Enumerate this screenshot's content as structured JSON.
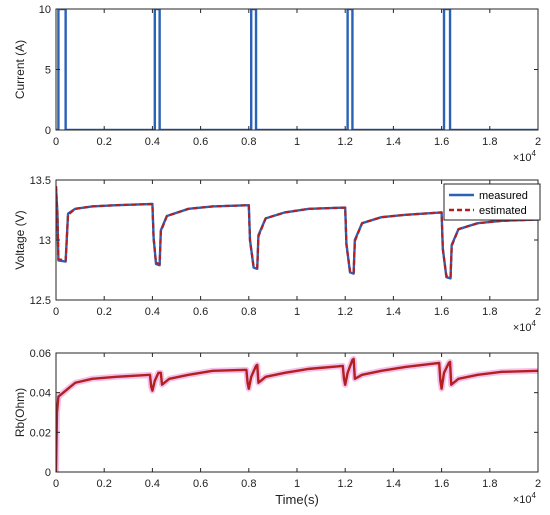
{
  "chart_data": [
    {
      "type": "line",
      "ylabel": "Current (A)",
      "xlabel": "",
      "x_exponent_label": "×10",
      "x_exponent_power": "4",
      "xlim": [
        0,
        2.0
      ],
      "ylim": [
        0,
        10
      ],
      "xticks": [
        "0",
        "0.2",
        "0.4",
        "0.6",
        "0.8",
        "1",
        "1.2",
        "1.4",
        "1.6",
        "1.8",
        "2"
      ],
      "yticks": [
        "0",
        "5",
        "10"
      ],
      "series": [
        {
          "color": "#2a62b8",
          "points": [
            [
              0,
              0
            ],
            [
              0.01,
              0
            ],
            [
              0.01,
              10
            ],
            [
              0.04,
              10
            ],
            [
              0.04,
              0
            ],
            [
              0.41,
              0
            ],
            [
              0.41,
              10
            ],
            [
              0.43,
              10
            ],
            [
              0.43,
              0
            ],
            [
              0.81,
              0
            ],
            [
              0.81,
              10
            ],
            [
              0.83,
              10
            ],
            [
              0.83,
              0
            ],
            [
              1.21,
              0
            ],
            [
              1.21,
              10
            ],
            [
              1.23,
              10
            ],
            [
              1.23,
              0
            ],
            [
              1.61,
              0
            ],
            [
              1.61,
              10
            ],
            [
              1.635,
              10
            ],
            [
              1.635,
              0
            ],
            [
              2.0,
              0
            ]
          ]
        }
      ]
    },
    {
      "type": "line",
      "ylabel": "Voltage (V)",
      "xlabel": "",
      "x_exponent_label": "×10",
      "x_exponent_power": "4",
      "xlim": [
        0,
        2.0
      ],
      "ylim": [
        12.5,
        13.5
      ],
      "xticks": [
        "0",
        "0.2",
        "0.4",
        "0.6",
        "0.8",
        "1",
        "1.2",
        "1.4",
        "1.6",
        "1.8",
        "2"
      ],
      "yticks": [
        "12.5",
        "13",
        "13.5"
      ],
      "legend": [
        "measured",
        "estimated"
      ],
      "legend_position": "top-right",
      "series": [
        {
          "name": "measured",
          "color": "#2a62b8",
          "dash": false,
          "points": [
            [
              0,
              13.44
            ],
            [
              0.006,
              13.22
            ],
            [
              0.01,
              12.83
            ],
            [
              0.04,
              12.82
            ],
            [
              0.05,
              13.22
            ],
            [
              0.08,
              13.26
            ],
            [
              0.15,
              13.28
            ],
            [
              0.25,
              13.29
            ],
            [
              0.4,
              13.3
            ],
            [
              0.405,
              13.02
            ],
            [
              0.415,
              12.8
            ],
            [
              0.43,
              12.79
            ],
            [
              0.435,
              13.08
            ],
            [
              0.46,
              13.2
            ],
            [
              0.55,
              13.26
            ],
            [
              0.65,
              13.28
            ],
            [
              0.8,
              13.29
            ],
            [
              0.805,
              13.0
            ],
            [
              0.82,
              12.77
            ],
            [
              0.835,
              12.76
            ],
            [
              0.84,
              13.04
            ],
            [
              0.87,
              13.18
            ],
            [
              0.95,
              13.23
            ],
            [
              1.05,
              13.26
            ],
            [
              1.2,
              13.27
            ],
            [
              1.205,
              12.97
            ],
            [
              1.22,
              12.73
            ],
            [
              1.235,
              12.72
            ],
            [
              1.24,
              13.0
            ],
            [
              1.27,
              13.14
            ],
            [
              1.35,
              13.19
            ],
            [
              1.45,
              13.21
            ],
            [
              1.6,
              13.23
            ],
            [
              1.605,
              12.93
            ],
            [
              1.62,
              12.69
            ],
            [
              1.637,
              12.68
            ],
            [
              1.642,
              12.96
            ],
            [
              1.67,
              13.09
            ],
            [
              1.75,
              13.14
            ],
            [
              1.85,
              13.16
            ],
            [
              2.0,
              13.17
            ]
          ]
        },
        {
          "name": "estimated",
          "color": "#b32020",
          "dash": true,
          "points": [
            [
              0,
              13.45
            ],
            [
              0.006,
              13.2
            ],
            [
              0.01,
              12.84
            ],
            [
              0.04,
              12.83
            ],
            [
              0.05,
              13.21
            ],
            [
              0.08,
              13.26
            ],
            [
              0.15,
              13.28
            ],
            [
              0.25,
              13.29
            ],
            [
              0.4,
              13.3
            ],
            [
              0.405,
              13.01
            ],
            [
              0.415,
              12.81
            ],
            [
              0.43,
              12.8
            ],
            [
              0.435,
              13.07
            ],
            [
              0.46,
              13.2
            ],
            [
              0.55,
              13.26
            ],
            [
              0.65,
              13.28
            ],
            [
              0.8,
              13.29
            ],
            [
              0.805,
              12.99
            ],
            [
              0.82,
              12.78
            ],
            [
              0.835,
              12.77
            ],
            [
              0.84,
              13.03
            ],
            [
              0.87,
              13.18
            ],
            [
              0.95,
              13.23
            ],
            [
              1.05,
              13.26
            ],
            [
              1.2,
              13.27
            ],
            [
              1.205,
              12.96
            ],
            [
              1.22,
              12.74
            ],
            [
              1.235,
              12.73
            ],
            [
              1.24,
              12.99
            ],
            [
              1.27,
              13.14
            ],
            [
              1.35,
              13.19
            ],
            [
              1.45,
              13.21
            ],
            [
              1.6,
              13.23
            ],
            [
              1.605,
              12.92
            ],
            [
              1.62,
              12.7
            ],
            [
              1.637,
              12.69
            ],
            [
              1.642,
              12.95
            ],
            [
              1.67,
              13.09
            ],
            [
              1.75,
              13.14
            ],
            [
              1.85,
              13.16
            ],
            [
              2.0,
              13.17
            ]
          ]
        }
      ]
    },
    {
      "type": "line",
      "ylabel": "Rb(Ohm)",
      "xlabel": "Time(s)",
      "x_exponent_label": "×10",
      "x_exponent_power": "4",
      "xlim": [
        0,
        2.0
      ],
      "ylim": [
        0,
        0.06
      ],
      "xticks": [
        "0",
        "0.2",
        "0.4",
        "0.6",
        "0.8",
        "1",
        "1.2",
        "1.4",
        "1.6",
        "1.8",
        "2"
      ],
      "yticks": [
        "0",
        "0.02",
        "0.04",
        "0.06"
      ],
      "series": [
        {
          "color": "#b32020",
          "glow": "#f2b0e6",
          "points": [
            [
              0,
              0
            ],
            [
              0.004,
              0.03
            ],
            [
              0.01,
              0.038
            ],
            [
              0.03,
              0.04
            ],
            [
              0.05,
              0.042
            ],
            [
              0.08,
              0.045
            ],
            [
              0.15,
              0.047
            ],
            [
              0.25,
              0.048
            ],
            [
              0.39,
              0.049
            ],
            [
              0.395,
              0.043
            ],
            [
              0.4,
              0.041
            ],
            [
              0.41,
              0.046
            ],
            [
              0.425,
              0.05
            ],
            [
              0.435,
              0.05
            ],
            [
              0.44,
              0.044
            ],
            [
              0.47,
              0.047
            ],
            [
              0.55,
              0.049
            ],
            [
              0.65,
              0.051
            ],
            [
              0.79,
              0.0515
            ],
            [
              0.795,
              0.045
            ],
            [
              0.8,
              0.042
            ],
            [
              0.81,
              0.048
            ],
            [
              0.83,
              0.0535
            ],
            [
              0.835,
              0.054
            ],
            [
              0.84,
              0.045
            ],
            [
              0.87,
              0.048
            ],
            [
              0.95,
              0.05
            ],
            [
              1.05,
              0.052
            ],
            [
              1.19,
              0.0535
            ],
            [
              1.195,
              0.047
            ],
            [
              1.2,
              0.044
            ],
            [
              1.21,
              0.05
            ],
            [
              1.23,
              0.0565
            ],
            [
              1.235,
              0.057
            ],
            [
              1.24,
              0.047
            ],
            [
              1.27,
              0.049
            ],
            [
              1.35,
              0.051
            ],
            [
              1.45,
              0.053
            ],
            [
              1.59,
              0.055
            ],
            [
              1.595,
              0.046
            ],
            [
              1.6,
              0.042
            ],
            [
              1.61,
              0.05
            ],
            [
              1.63,
              0.055
            ],
            [
              1.635,
              0.0555
            ],
            [
              1.64,
              0.044
            ],
            [
              1.67,
              0.047
            ],
            [
              1.75,
              0.049
            ],
            [
              1.85,
              0.0505
            ],
            [
              2.0,
              0.051
            ]
          ]
        }
      ]
    }
  ]
}
